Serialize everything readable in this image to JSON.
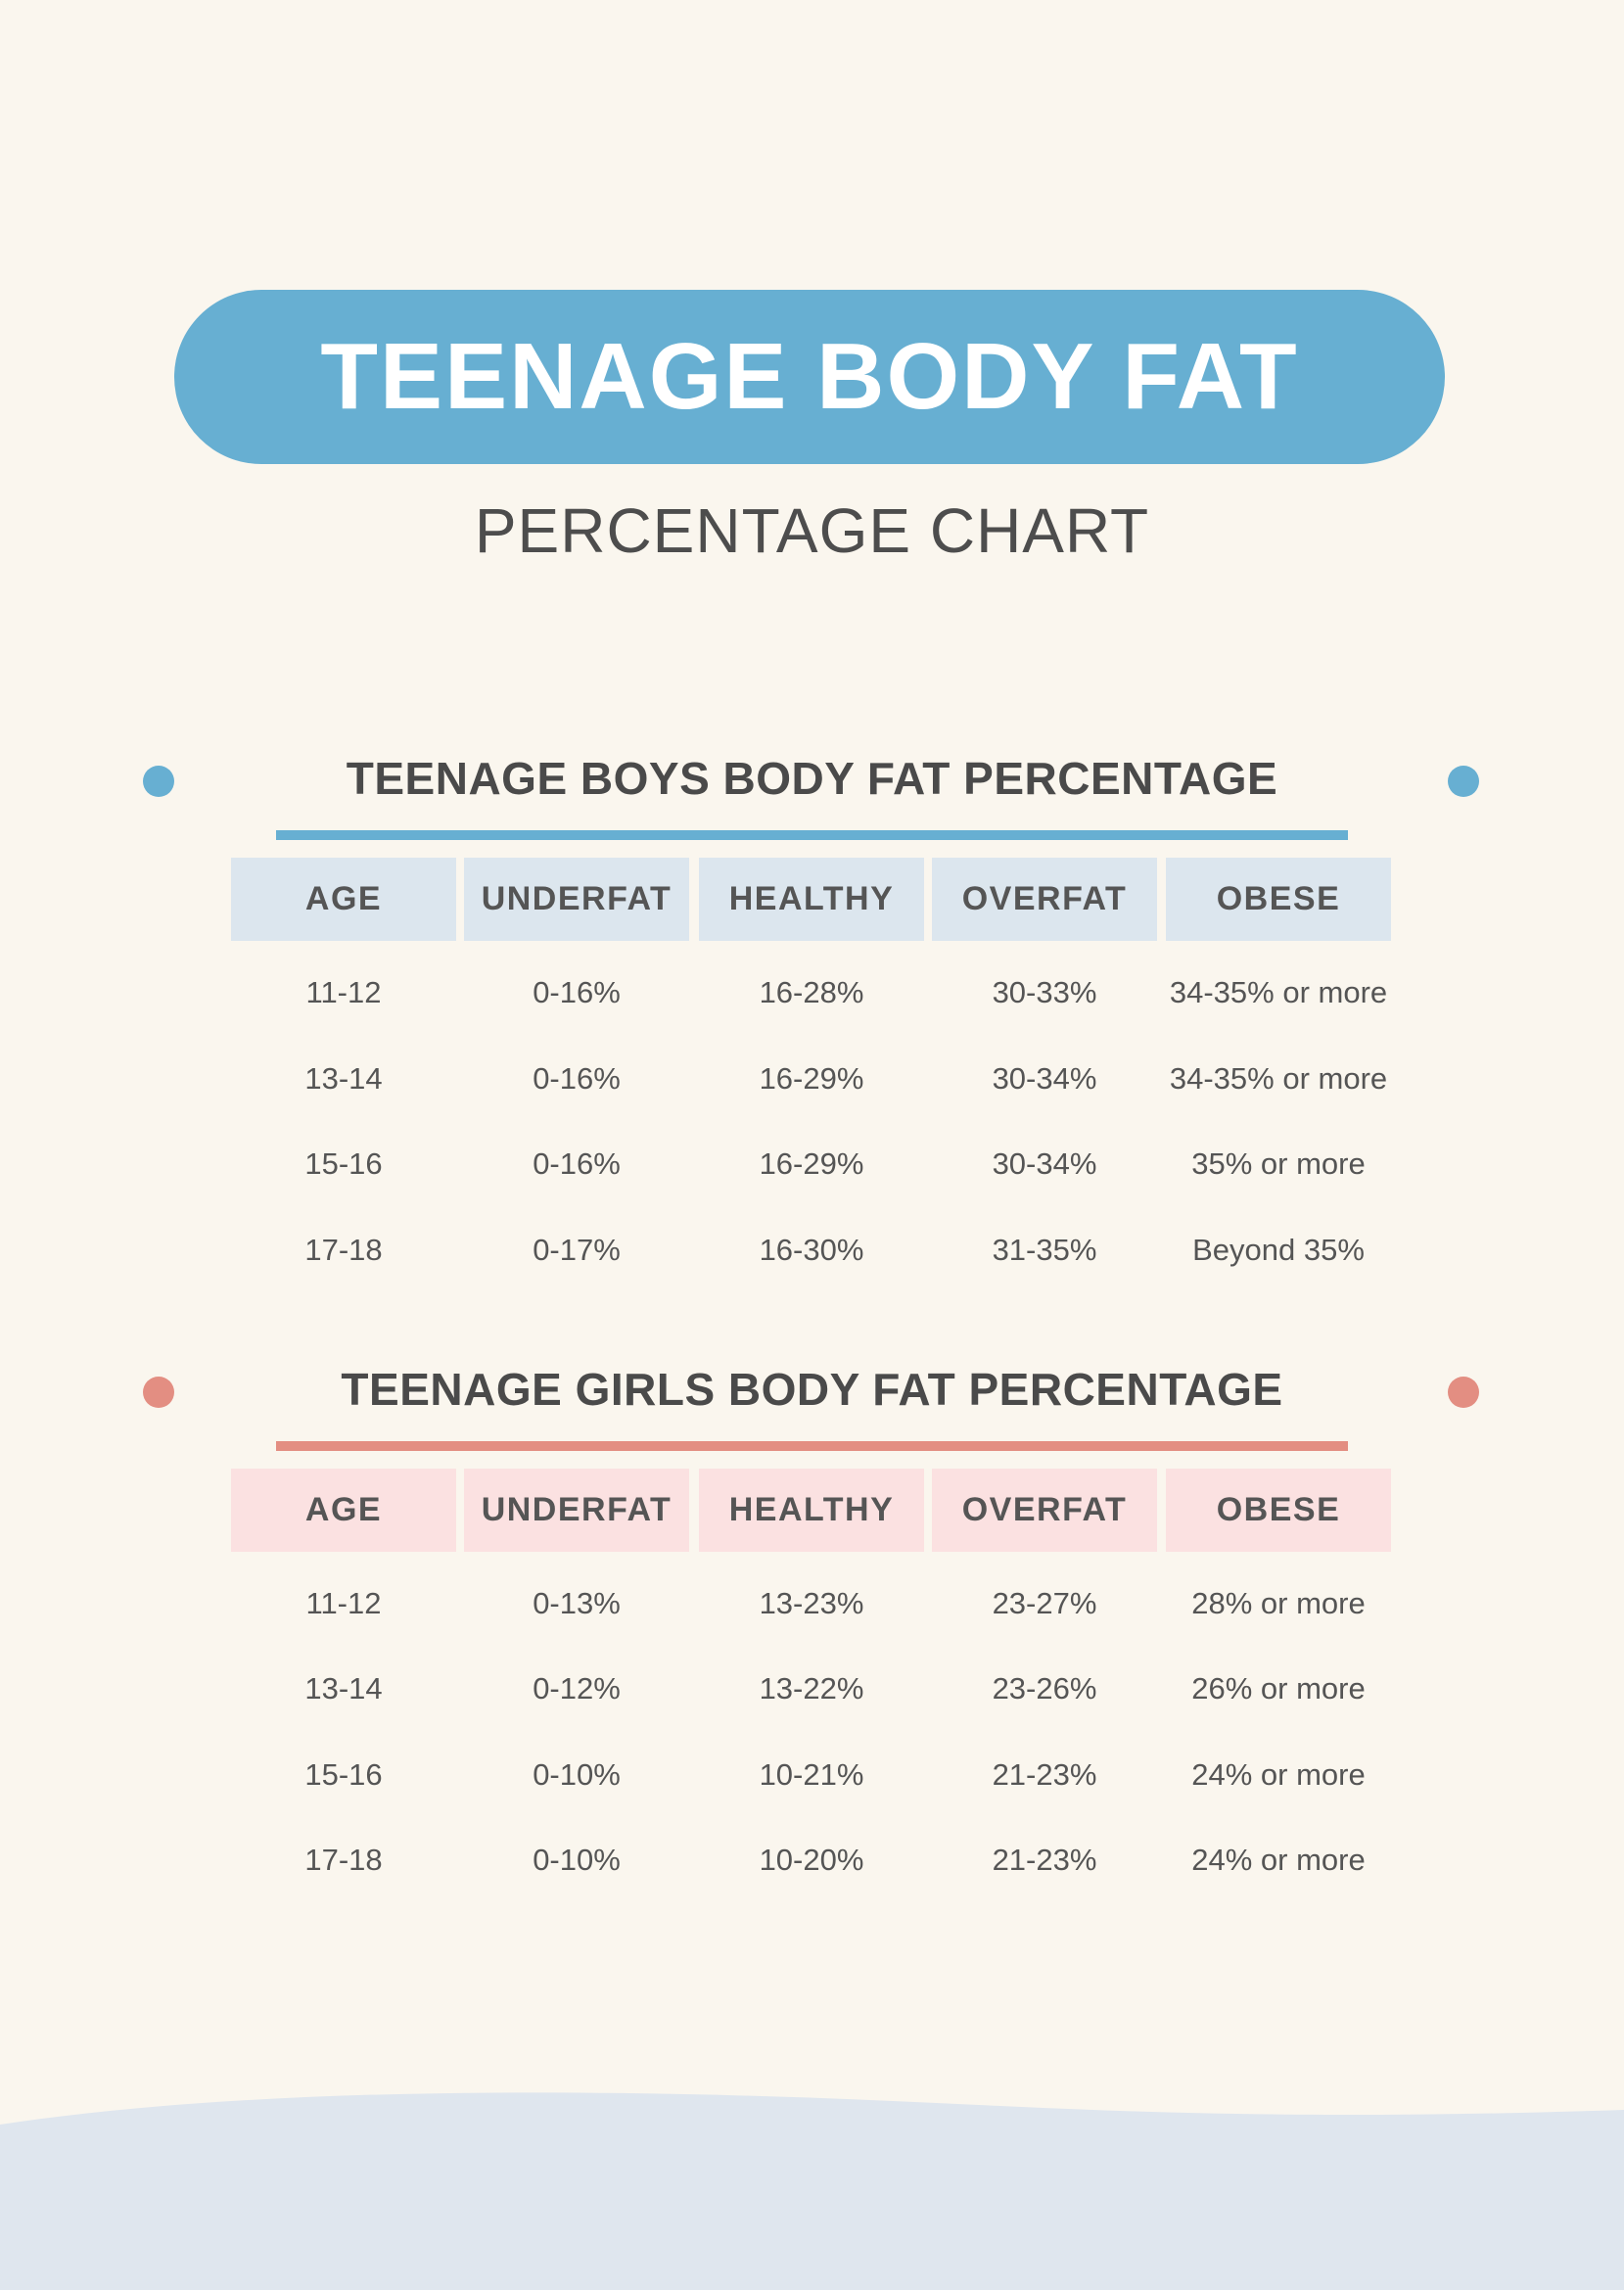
{
  "title": "TEENAGE BODY FAT",
  "subtitle": "PERCENTAGE CHART",
  "colors": {
    "background": "#faf6ee",
    "title_pill": "#67afd2",
    "boys_accent": "#67afd2",
    "boys_header_bg": "#dce6ee",
    "girls_accent": "#e38e82",
    "girls_header_bg": "#fbe1e1",
    "wave": "#dfe6ee"
  },
  "tables": {
    "boys": {
      "title": "TEENAGE BOYS BODY FAT PERCENTAGE",
      "headers": [
        "AGE",
        "UNDERFAT",
        "HEALTHY",
        "OVERFAT",
        "OBESE"
      ],
      "rows": [
        [
          "11-12",
          "0-16%",
          "16-28%",
          "30-33%",
          "34-35% or more"
        ],
        [
          "13-14",
          "0-16%",
          "16-29%",
          "30-34%",
          "34-35% or more"
        ],
        [
          "15-16",
          "0-16%",
          "16-29%",
          "30-34%",
          "35% or more"
        ],
        [
          "17-18",
          "0-17%",
          "16-30%",
          "31-35%",
          "Beyond 35%"
        ]
      ]
    },
    "girls": {
      "title": "TEENAGE GIRLS BODY FAT PERCENTAGE",
      "headers": [
        "AGE",
        "UNDERFAT",
        "HEALTHY",
        "OVERFAT",
        "OBESE"
      ],
      "rows": [
        [
          "11-12",
          "0-13%",
          "13-23%",
          "23-27%",
          "28% or more"
        ],
        [
          "13-14",
          "0-12%",
          "13-22%",
          "23-26%",
          "26% or more"
        ],
        [
          "15-16",
          "0-10%",
          "10-21%",
          "21-23%",
          "24% or more"
        ],
        [
          "17-18",
          "0-10%",
          "10-20%",
          "21-23%",
          "24% or more"
        ]
      ]
    }
  }
}
